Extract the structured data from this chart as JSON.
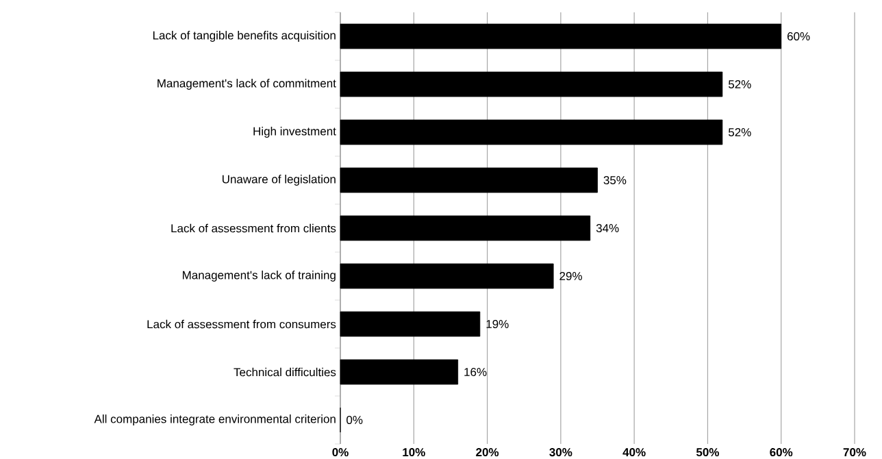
{
  "chart_data": {
    "type": "bar",
    "orientation": "horizontal",
    "categories": [
      "Lack of tangible benefits acquisition",
      "Management's lack of commitment",
      "High investment",
      "Unaware of legislation",
      "Lack of assessment from clients",
      "Management's lack of training",
      "Lack of assessment from consumers",
      "Technical difficulties",
      "All companies integrate environmental criterion"
    ],
    "values": [
      60,
      52,
      52,
      35,
      34,
      29,
      19,
      16,
      0
    ],
    "value_labels": [
      "60%",
      "52%",
      "52%",
      "35%",
      "34%",
      "29%",
      "19%",
      "16%",
      "0%"
    ],
    "color": "#000000",
    "xlim": [
      0,
      70
    ],
    "xticks": [
      {
        "value": 0,
        "label": "0%"
      },
      {
        "value": 10,
        "label": "10%"
      },
      {
        "value": 20,
        "label": "20%"
      },
      {
        "value": 30,
        "label": "30%"
      },
      {
        "value": 40,
        "label": "40%"
      },
      {
        "value": 50,
        "label": "50%"
      },
      {
        "value": 60,
        "label": "60%"
      },
      {
        "value": 70,
        "label": "70%"
      }
    ],
    "grid": "x"
  }
}
